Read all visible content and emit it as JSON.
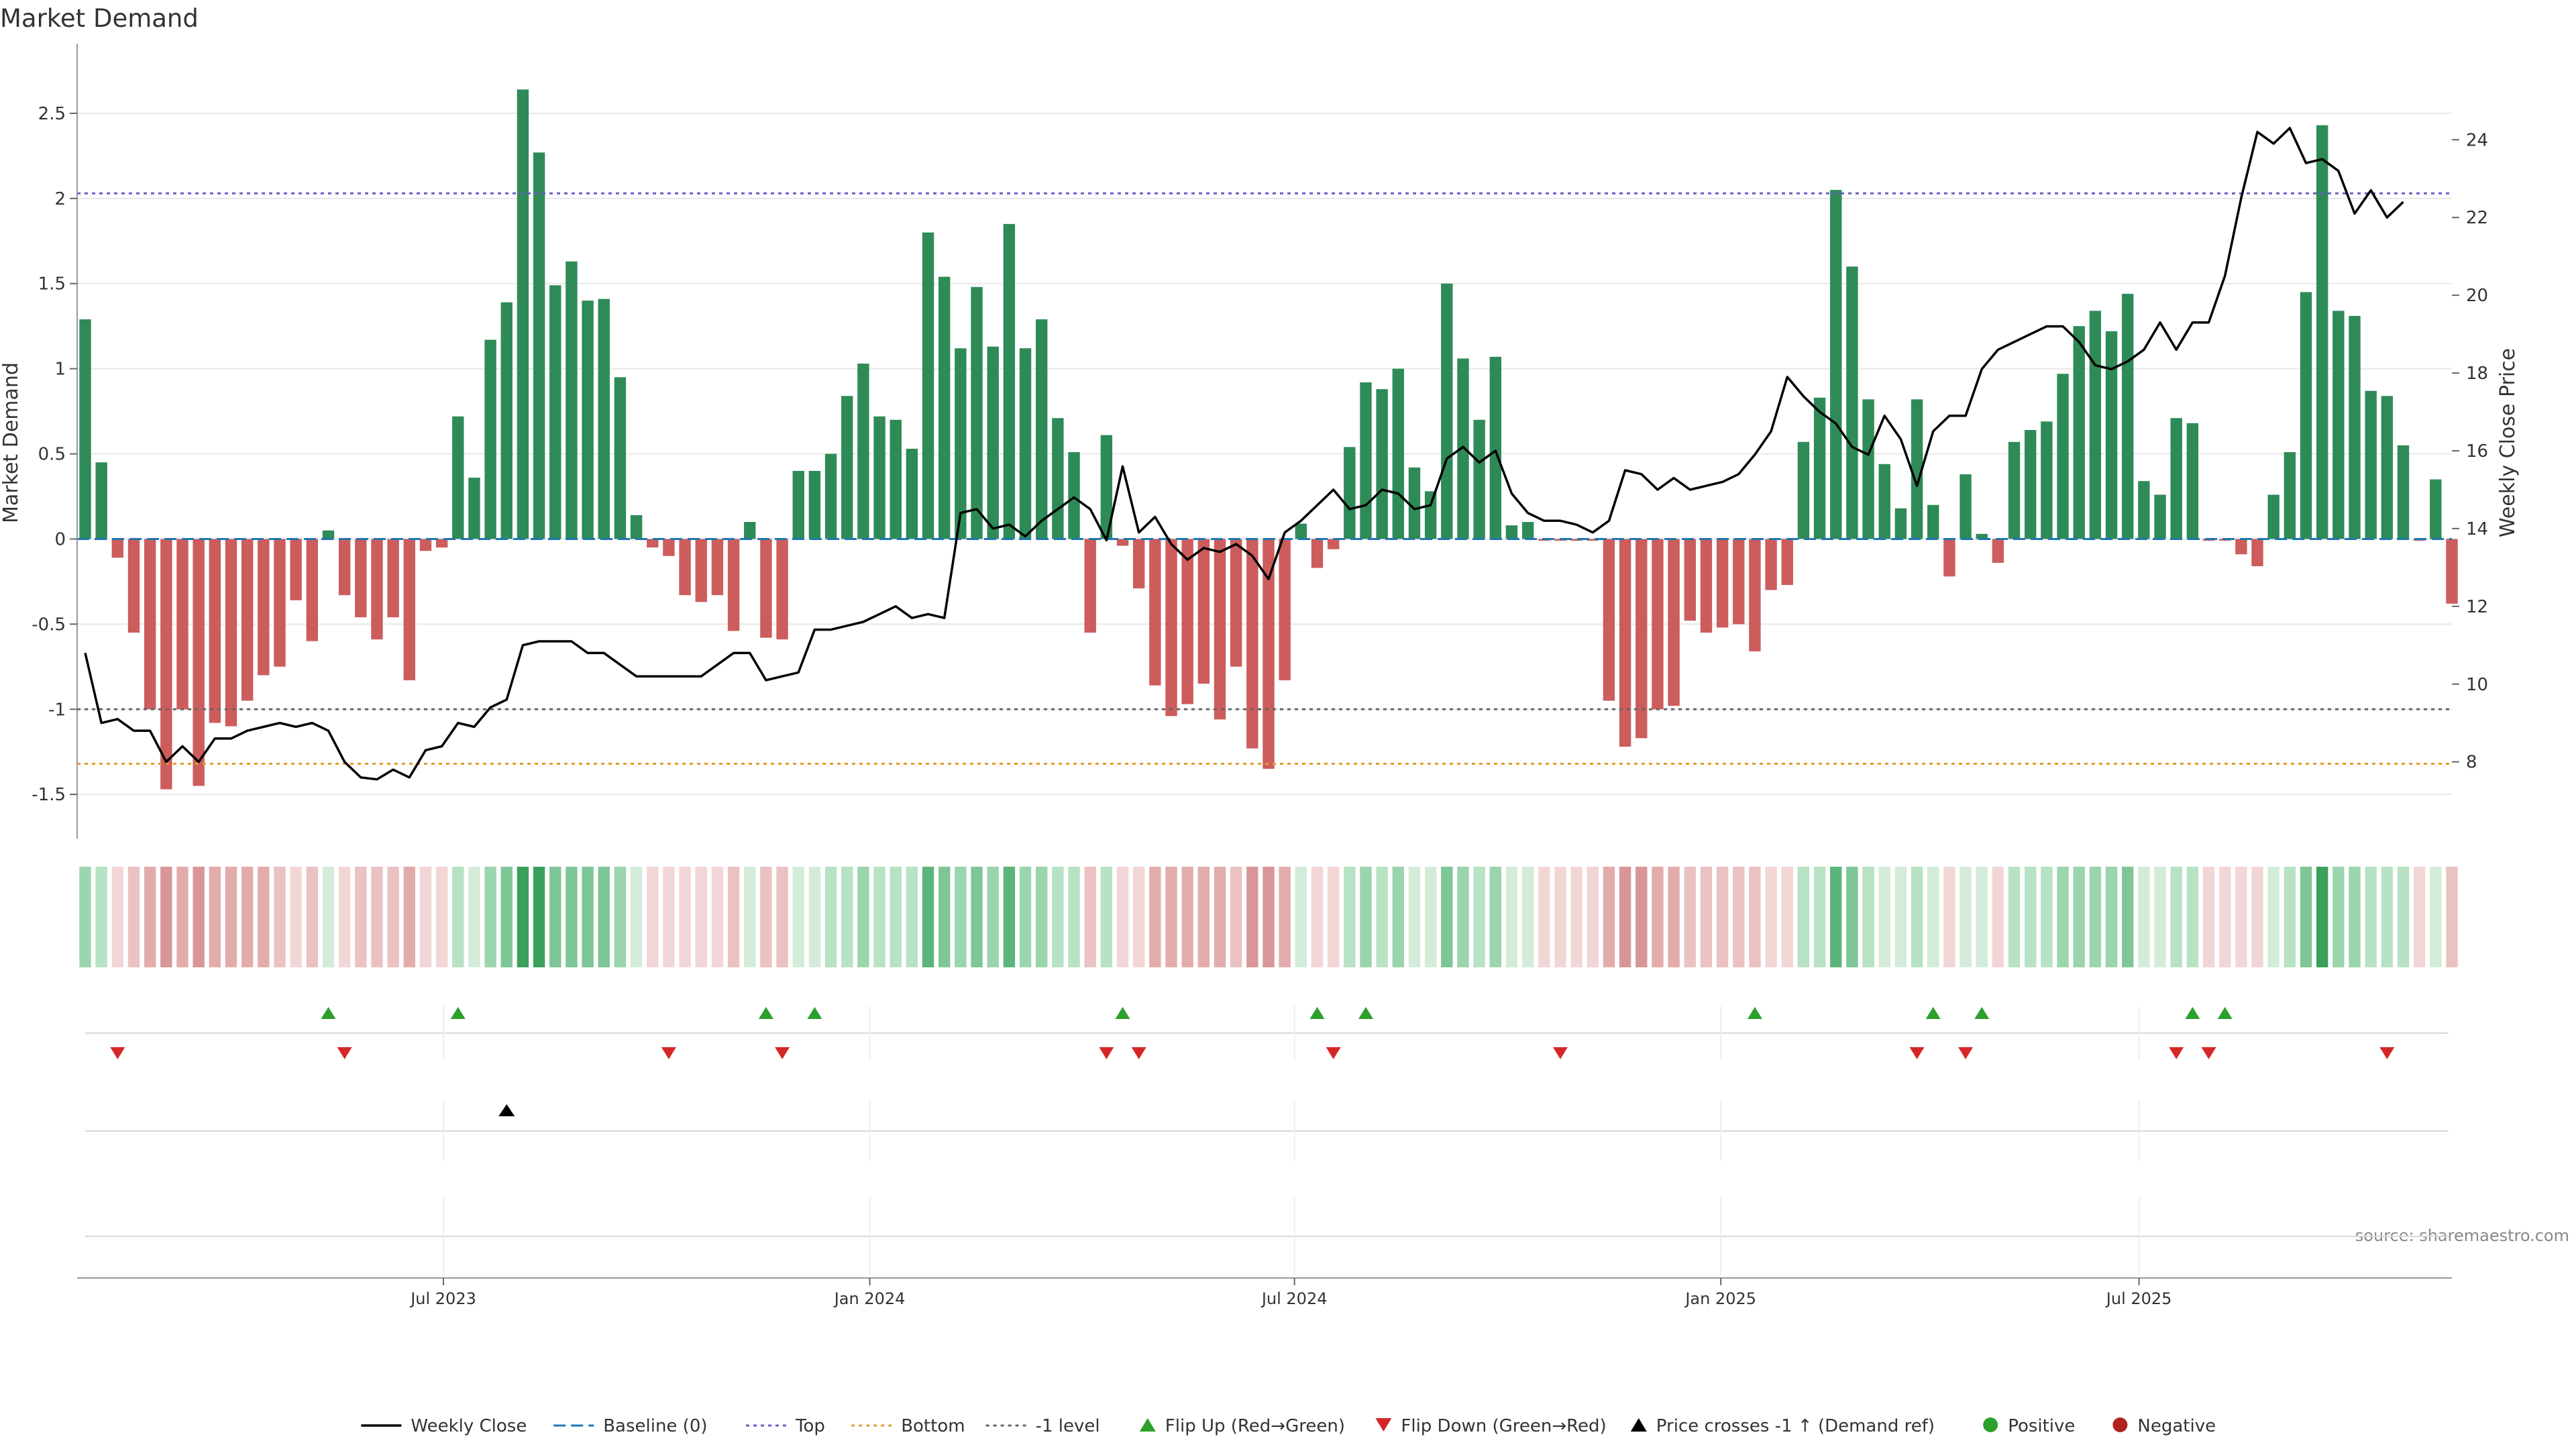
{
  "title": "Market Demand",
  "source": "source: sharemaestro.com",
  "colors": {
    "positive": "#2e8b57",
    "negative": "#cd5c5c",
    "price": "#000000",
    "baseline": "#1f77b4",
    "top": "#6a5acd",
    "bottom": "#e69a28",
    "minus1": "#666666",
    "flip_up": "#2ca02c",
    "flip_down": "#d62728",
    "cross": "#000000",
    "pos_dot": "#2ca02c",
    "neg_dot": "#b22222"
  },
  "chart_data": {
    "type": "bar",
    "title": "Market Demand",
    "ylabel": "Market Demand",
    "y2label": "Weekly Close Price",
    "ylim": [
      -1.72,
      2.87
    ],
    "y2lim": [
      6.2,
      26.3
    ],
    "yticks": [
      "-1.5",
      "-1",
      "-0.5",
      "0",
      "0.5",
      "1",
      "1.5",
      "2",
      "2.5"
    ],
    "y2ticks": [
      "8",
      "10",
      "12",
      "14",
      "16",
      "18",
      "20",
      "22",
      "24"
    ],
    "xticks": [
      "Jul 2023",
      "Jan 2024",
      "Jul 2024",
      "Jan 2025",
      "Jul 2025"
    ],
    "xtick_index": [
      22.1,
      48.4,
      74.6,
      100.9,
      126.7
    ],
    "top_level": 2.03,
    "bottom_level": -1.32,
    "minus1_level": -1.0,
    "demand": [
      1.29,
      0.45,
      -0.11,
      -0.55,
      -1.0,
      -1.47,
      -1.0,
      -1.45,
      -1.08,
      -1.1,
      -0.95,
      -0.8,
      -0.75,
      -0.36,
      -0.6,
      0.05,
      -0.33,
      -0.46,
      -0.59,
      -0.46,
      -0.83,
      -0.07,
      -0.05,
      0.72,
      0.36,
      1.17,
      1.39,
      2.64,
      2.27,
      1.49,
      1.63,
      1.4,
      1.41,
      0.95,
      0.14,
      -0.05,
      -0.1,
      -0.33,
      -0.37,
      -0.33,
      -0.54,
      0.1,
      -0.58,
      -0.59,
      0.4,
      0.4,
      0.5,
      0.84,
      1.03,
      0.72,
      0.7,
      0.53,
      1.8,
      1.54,
      1.12,
      1.48,
      1.13,
      1.85,
      1.12,
      1.29,
      0.71,
      0.51,
      -0.55,
      0.61,
      -0.04,
      -0.29,
      -0.86,
      -1.04,
      -0.97,
      -0.85,
      -1.06,
      -0.75,
      -1.23,
      -1.35,
      -0.83,
      0.09,
      -0.17,
      -0.06,
      0.54,
      0.92,
      0.88,
      1.0,
      0.42,
      0.28,
      1.5,
      1.06,
      0.7,
      1.07,
      0.08,
      0.1,
      -0.01,
      -0.01,
      -0.01,
      -0.01,
      -0.95,
      -1.22,
      -1.17,
      -1.0,
      -0.98,
      -0.48,
      -0.55,
      -0.52,
      -0.5,
      -0.66,
      -0.3,
      -0.27,
      0.57,
      0.83,
      2.05,
      1.6,
      0.82,
      0.44,
      0.18,
      0.82,
      0.2,
      -0.22,
      0.38,
      0.03,
      -0.14,
      0.57,
      0.64,
      0.69,
      0.97,
      1.25,
      1.34,
      1.22,
      1.44,
      0.34,
      0.26,
      0.71,
      0.68,
      -0.01,
      -0.01,
      -0.09,
      -0.16,
      0.26,
      0.51,
      1.45,
      2.43,
      1.34,
      1.31,
      0.87,
      0.84,
      0.55,
      -0.01,
      0.35,
      -0.38
    ],
    "price": [
      10.8,
      9.0,
      9.1,
      8.8,
      8.8,
      8.0,
      8.4,
      8.0,
      8.6,
      8.6,
      8.8,
      8.9,
      9.0,
      8.9,
      9.0,
      8.8,
      8.0,
      7.6,
      7.55,
      7.8,
      7.6,
      8.3,
      8.4,
      9.0,
      8.9,
      9.4,
      9.6,
      11.0,
      11.1,
      11.1,
      11.1,
      10.8,
      10.8,
      10.5,
      10.2,
      10.2,
      10.2,
      10.2,
      10.2,
      10.5,
      10.8,
      10.8,
      10.1,
      10.2,
      10.3,
      11.4,
      11.4,
      11.5,
      11.6,
      11.8,
      12.0,
      11.7,
      11.8,
      11.7,
      14.4,
      14.5,
      14.0,
      14.1,
      13.8,
      14.2,
      14.5,
      14.8,
      14.5,
      13.7,
      15.6,
      13.9,
      14.3,
      13.6,
      13.2,
      13.5,
      13.4,
      13.6,
      13.3,
      12.7,
      13.9,
      14.2,
      14.6,
      15.0,
      14.5,
      14.6,
      15.0,
      14.9,
      14.5,
      14.6,
      15.8,
      16.1,
      15.7,
      16.0,
      14.9,
      14.4,
      14.2,
      14.2,
      14.1,
      13.9,
      14.2,
      15.5,
      15.4,
      15.0,
      15.3,
      15.0,
      15.1,
      15.2,
      15.4,
      15.9,
      16.5,
      17.9,
      17.4,
      17.0,
      16.7,
      16.1,
      15.9,
      16.9,
      16.3,
      15.1,
      16.5,
      16.9,
      16.9,
      18.1,
      18.6,
      18.8,
      19.0,
      19.2,
      19.2,
      18.8,
      18.2,
      18.1,
      18.3,
      18.6,
      19.3,
      18.6,
      19.3,
      19.3,
      20.5,
      22.5,
      24.2,
      23.9,
      24.3,
      23.4,
      23.5,
      23.2,
      22.1,
      22.7,
      22.0,
      22.4
    ],
    "flip_up": [
      15,
      23,
      42,
      45,
      64,
      76,
      79,
      103,
      114,
      117,
      130,
      132
    ],
    "flip_down": [
      2,
      16,
      36,
      43,
      63,
      65,
      77,
      91,
      113,
      116,
      129,
      131,
      142
    ],
    "price_cross_up": [
      26
    ],
    "legend": [
      "Weekly Close",
      "Baseline (0)",
      "Top",
      "Bottom",
      "-1 level",
      "Flip Up (Red→Green)",
      "Flip Down (Green→Red)",
      "Price crosses -1 ↑ (Demand ref)",
      "Positive",
      "Negative"
    ],
    "legend_position": "bottom",
    "grid": true
  }
}
